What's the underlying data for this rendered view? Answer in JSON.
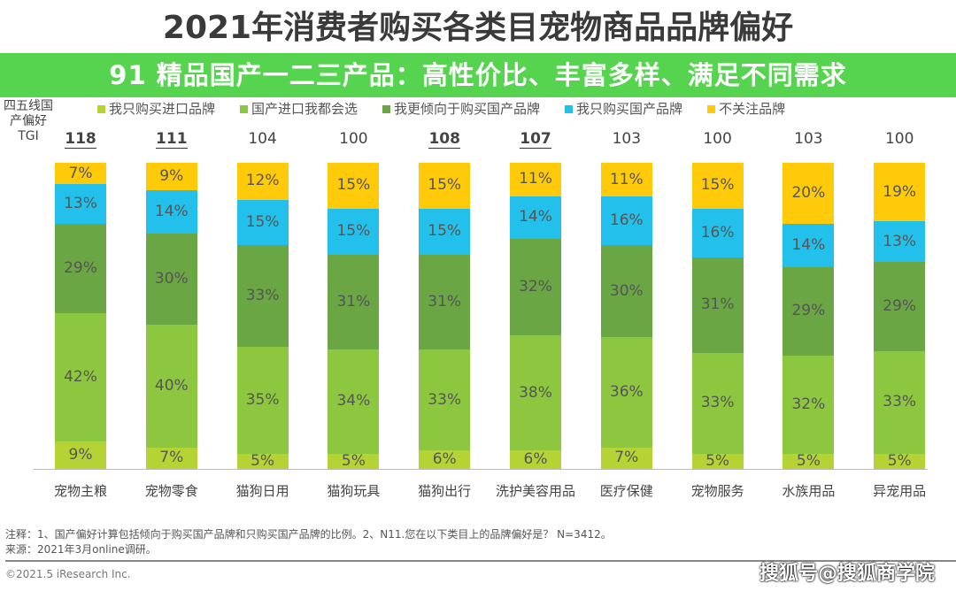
{
  "chart_data": {
    "type": "bar",
    "stacked": true,
    "title": "2021年消费者购买各类目宠物商品品牌偏好",
    "tgi_label": "四五线国产偏好TGI",
    "categories": [
      "宠物主粮",
      "宠物零食",
      "猫狗日用",
      "猫狗玩具",
      "猫狗出行",
      "洗护美容用品",
      "医疗保健",
      "宠物服务",
      "水族用品",
      "异宠用品"
    ],
    "tgi": [
      118,
      111,
      104,
      100,
      108,
      107,
      103,
      100,
      103,
      100
    ],
    "tgi_emphasized": [
      true,
      true,
      false,
      false,
      true,
      true,
      false,
      false,
      false,
      false
    ],
    "series": [
      {
        "name": "我只购买进口品牌",
        "color": "#b5d334",
        "values": [
          9,
          7,
          5,
          5,
          6,
          6,
          7,
          5,
          5,
          5
        ]
      },
      {
        "name": "国产进口我都会选",
        "color": "#8dc63f",
        "values": [
          42,
          40,
          35,
          34,
          33,
          38,
          36,
          33,
          32,
          33
        ]
      },
      {
        "name": "我更倾向于购买国产品牌",
        "color": "#6aa644",
        "values": [
          29,
          30,
          33,
          31,
          31,
          32,
          30,
          31,
          29,
          29
        ]
      },
      {
        "name": "我只购买国产品牌",
        "color": "#22c0ea",
        "values": [
          13,
          14,
          15,
          15,
          15,
          14,
          16,
          16,
          14,
          13
        ]
      },
      {
        "name": "不关注品牌",
        "color": "#ffca0a",
        "values": [
          7,
          9,
          12,
          15,
          15,
          11,
          11,
          15,
          20,
          19
        ]
      }
    ],
    "ylim": [
      0,
      100
    ],
    "legend": "top",
    "grid": false
  },
  "notes": {
    "note": "注释：1、国产偏好计算包括倾向于购买国产品牌和只购买国产品牌的比例。2、N11.您在以下类目上的品牌偏好是？ N=3412。",
    "source": "来源：2021年3月online调研。",
    "copyright": "©2021.5 iResearch Inc.",
    "watermark": "搜狐号@搜狐商学院"
  },
  "banner": {
    "text": "91 精品国产一二三产品：高性价比、丰富多样、满足不同需求",
    "color": "#28c81e"
  }
}
